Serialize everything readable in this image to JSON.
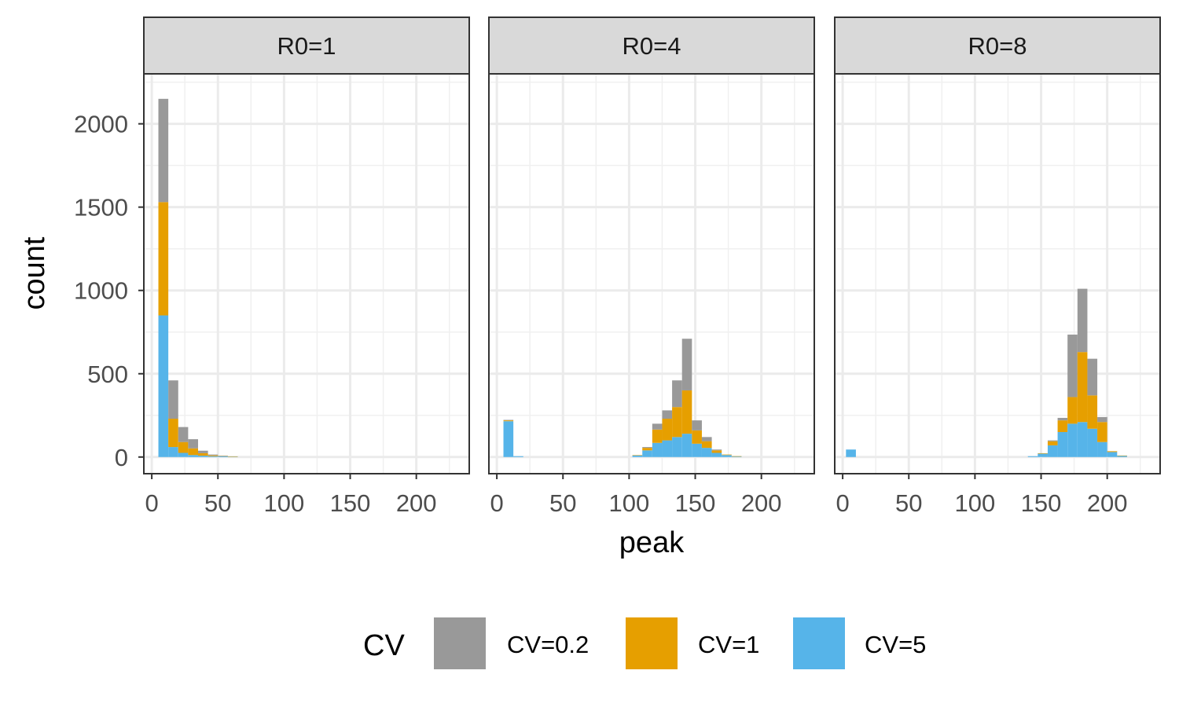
{
  "chart_data": {
    "type": "histogram",
    "stacked": true,
    "binwidth": 7.5,
    "xlabel": "peak",
    "ylabel": "count",
    "xlim": [
      -6,
      240
    ],
    "ylim": [
      -100,
      2300
    ],
    "xticks": [
      0,
      50,
      100,
      150,
      200
    ],
    "xminor": [
      25,
      75,
      125,
      175,
      225
    ],
    "yticks": [
      0,
      500,
      1000,
      1500,
      2000
    ],
    "yminor": [
      250,
      750,
      1250,
      1750,
      2250
    ],
    "legend": {
      "title": "CV",
      "position": "bottom",
      "entries": [
        {
          "key": "cv02",
          "label": "CV=0.2",
          "color": "#999999"
        },
        {
          "key": "cv1",
          "label": "CV=1",
          "color": "#E69F00"
        },
        {
          "key": "cv5",
          "label": "CV=5",
          "color": "#56B4E9"
        }
      ]
    },
    "panels": [
      {
        "strip": "R0=1",
        "bins": [
          {
            "x0": 5,
            "cv5": 850,
            "cv1": 680,
            "cv02": 620
          },
          {
            "x0": 12.5,
            "cv5": 60,
            "cv1": 170,
            "cv02": 230
          },
          {
            "x0": 20,
            "cv5": 25,
            "cv1": 65,
            "cv02": 90
          },
          {
            "x0": 27.5,
            "cv5": 12,
            "cv1": 40,
            "cv02": 55
          },
          {
            "x0": 35,
            "cv5": 8,
            "cv1": 15,
            "cv02": 15
          },
          {
            "x0": 42.5,
            "cv5": 5,
            "cv1": 5,
            "cv02": 5
          },
          {
            "x0": 50,
            "cv5": 5,
            "cv1": 2,
            "cv02": 1
          },
          {
            "x0": 57.5,
            "cv5": 3,
            "cv1": 1,
            "cv02": 0
          }
        ]
      },
      {
        "strip": "R0=4",
        "bins": [
          {
            "x0": 5,
            "cv5": 215,
            "cv1": 5,
            "cv02": 3
          },
          {
            "x0": 12.5,
            "cv5": 5,
            "cv1": 0,
            "cv02": 0
          },
          {
            "x0": 102.5,
            "cv5": 10,
            "cv1": 2,
            "cv02": 0
          },
          {
            "x0": 110,
            "cv5": 40,
            "cv1": 15,
            "cv02": 5
          },
          {
            "x0": 117.5,
            "cv5": 85,
            "cv1": 80,
            "cv02": 35
          },
          {
            "x0": 125,
            "cv5": 100,
            "cv1": 130,
            "cv02": 50
          },
          {
            "x0": 132.5,
            "cv5": 120,
            "cv1": 180,
            "cv02": 160
          },
          {
            "x0": 140,
            "cv5": 140,
            "cv1": 260,
            "cv02": 310
          },
          {
            "x0": 147.5,
            "cv5": 80,
            "cv1": 80,
            "cv02": 60
          },
          {
            "x0": 155,
            "cv5": 55,
            "cv1": 40,
            "cv02": 25
          },
          {
            "x0": 162.5,
            "cv5": 25,
            "cv1": 15,
            "cv02": 5
          },
          {
            "x0": 170,
            "cv5": 12,
            "cv1": 3,
            "cv02": 0
          },
          {
            "x0": 177.5,
            "cv5": 4,
            "cv1": 1,
            "cv02": 0
          }
        ]
      },
      {
        "strip": "R0=8",
        "bins": [
          {
            "x0": 2.5,
            "cv5": 45,
            "cv1": 0,
            "cv02": 0
          },
          {
            "x0": 140,
            "cv5": 5,
            "cv1": 0,
            "cv02": 0
          },
          {
            "x0": 147.5,
            "cv5": 20,
            "cv1": 3,
            "cv02": 0
          },
          {
            "x0": 155,
            "cv5": 70,
            "cv1": 25,
            "cv02": 5
          },
          {
            "x0": 162.5,
            "cv5": 150,
            "cv1": 70,
            "cv02": 15
          },
          {
            "x0": 170,
            "cv5": 200,
            "cv1": 160,
            "cv02": 375
          },
          {
            "x0": 177.5,
            "cv5": 210,
            "cv1": 420,
            "cv02": 380
          },
          {
            "x0": 185,
            "cv5": 170,
            "cv1": 200,
            "cv02": 220
          },
          {
            "x0": 192.5,
            "cv5": 90,
            "cv1": 120,
            "cv02": 30
          },
          {
            "x0": 200,
            "cv5": 30,
            "cv1": 5,
            "cv02": 0
          },
          {
            "x0": 207.5,
            "cv5": 8,
            "cv1": 1,
            "cv02": 0
          }
        ]
      }
    ]
  }
}
